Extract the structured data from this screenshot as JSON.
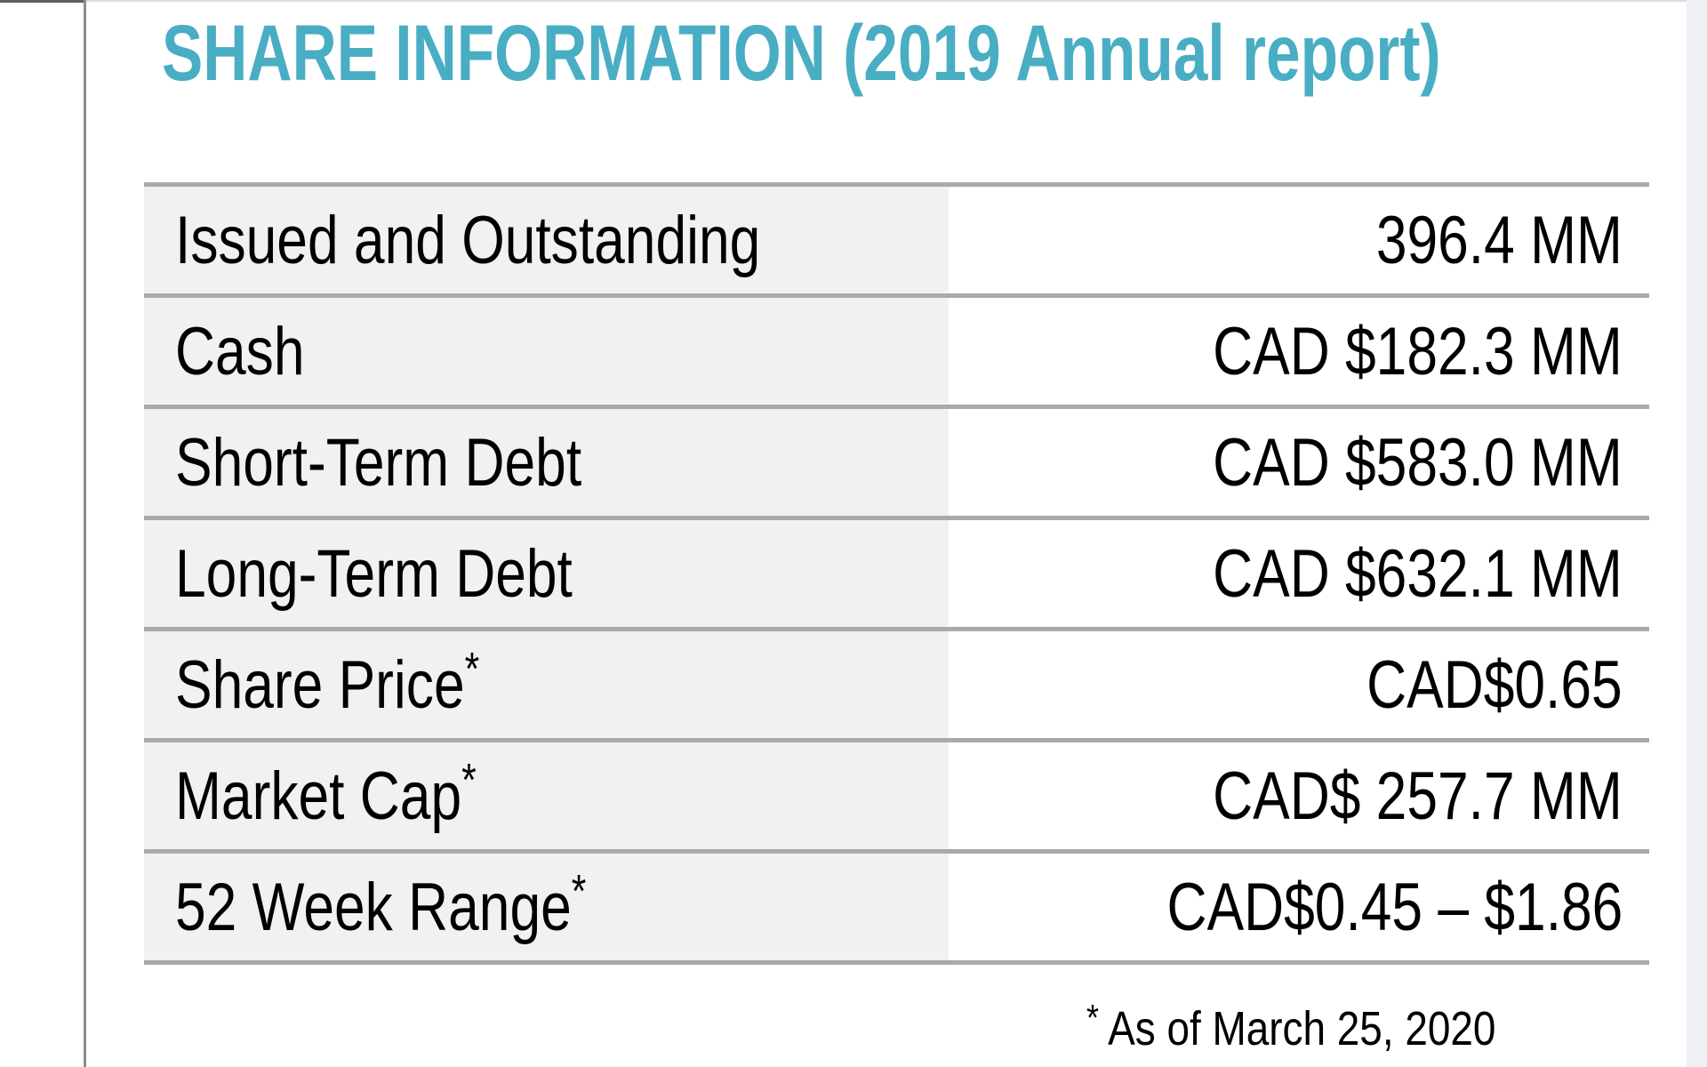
{
  "header": {
    "title": "SHARE INFORMATION (2019 Annual report)",
    "title_color": "#49ADC3"
  },
  "table": {
    "label_bg": "#F1F1F1",
    "separator_color": "#A9A9A9",
    "rows": [
      {
        "label": "Issued and Outstanding",
        "asterisk": false,
        "value": "396.4 MM"
      },
      {
        "label": "Cash",
        "asterisk": false,
        "value": "CAD $182.3 MM"
      },
      {
        "label": "Short-Term Debt",
        "asterisk": false,
        "value": "CAD $583.0 MM"
      },
      {
        "label": "Long-Term Debt",
        "asterisk": false,
        "value": "CAD $632.1 MM"
      },
      {
        "label": "Share Price",
        "asterisk": true,
        "value": "CAD$0.65"
      },
      {
        "label": "Market Cap",
        "asterisk": true,
        "value": "CAD$ 257.7 MM"
      },
      {
        "label": "52 Week Range",
        "asterisk": true,
        "value": "CAD$0.45 – $1.86"
      }
    ]
  },
  "footnote": {
    "marker": "*",
    "text": "As of March 25, 2020"
  }
}
